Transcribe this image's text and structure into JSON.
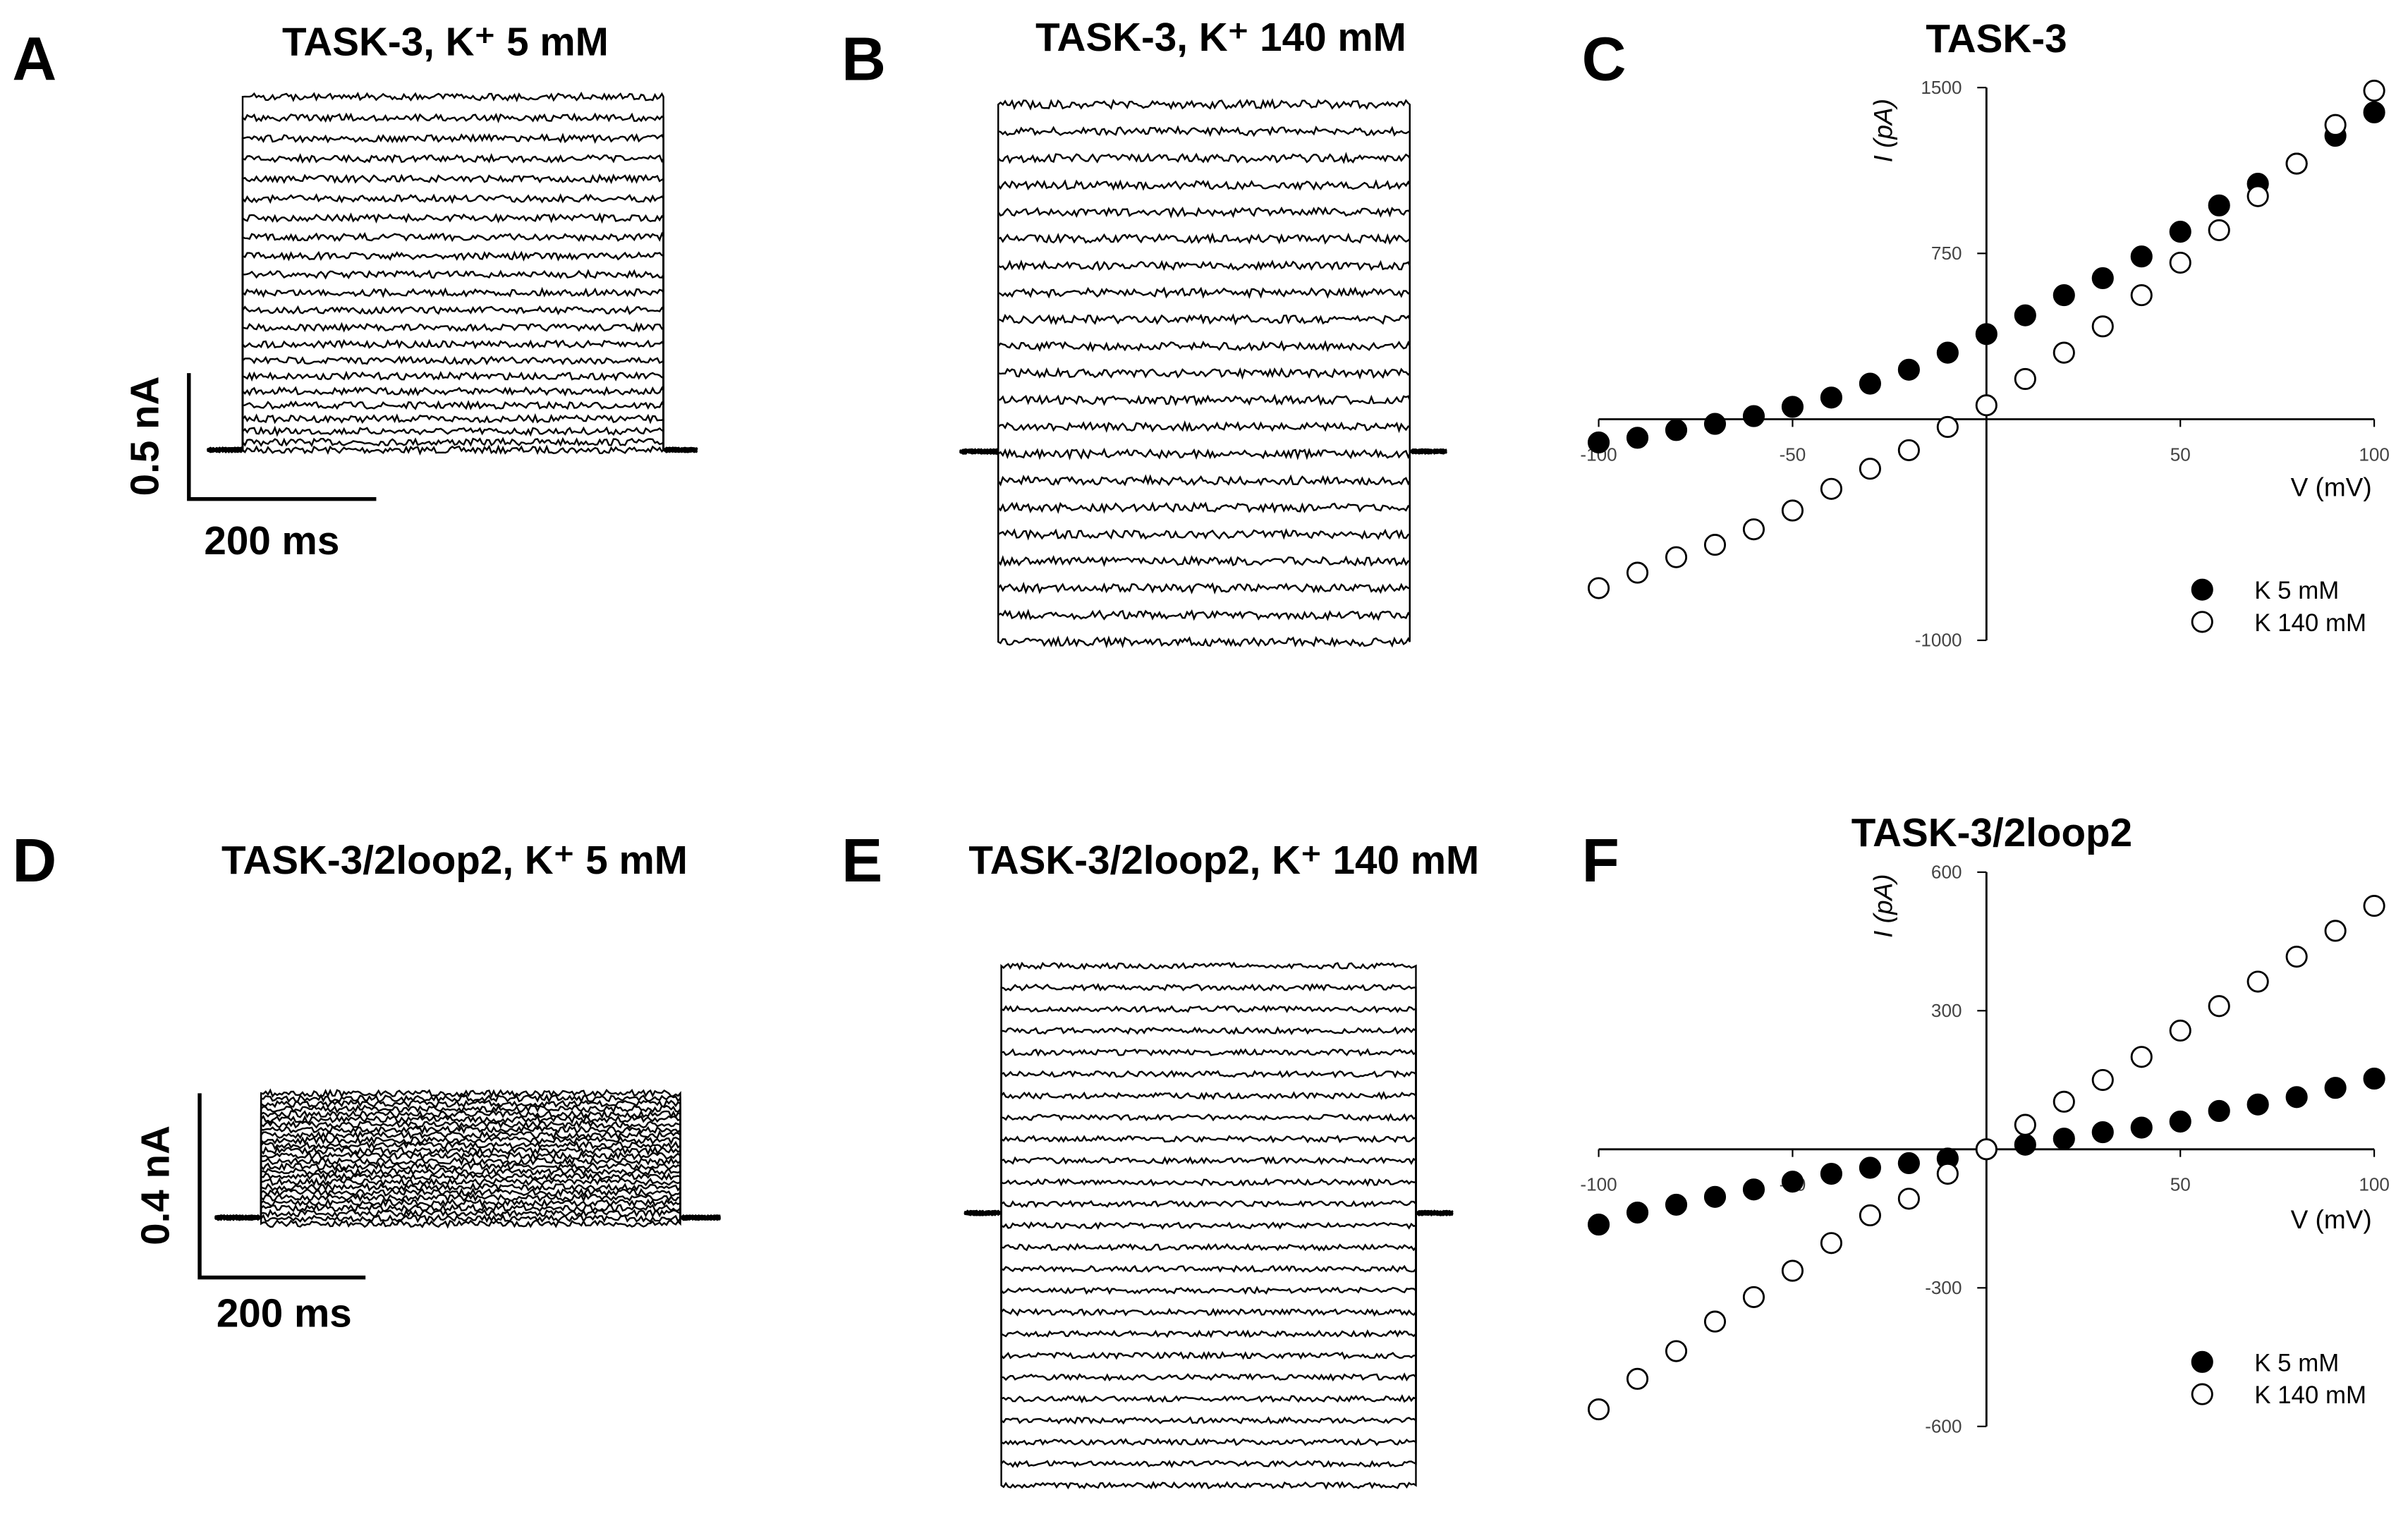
{
  "chart_data": [
    {
      "type": "traces",
      "panel": "A",
      "title": "TASK-3, K⁺ 5 mM",
      "scale_y": "0.5 nA",
      "scale_x": "200 ms"
    },
    {
      "type": "traces",
      "panel": "B",
      "title": "TASK-3, K⁺ 140 mM"
    },
    {
      "type": "scatter",
      "panel": "C",
      "title": "TASK-3",
      "x_label": "V (mV)",
      "y_label": "I (pA)",
      "x": [
        -100,
        -90,
        -80,
        -70,
        -60,
        -50,
        -40,
        -30,
        -20,
        -10,
        0,
        10,
        20,
        30,
        40,
        50,
        60,
        70,
        80,
        90,
        100
      ],
      "xlim": [
        -100,
        100
      ],
      "xticks": [
        -100,
        -50,
        50,
        100
      ],
      "ylim": [
        -1000,
        1500
      ],
      "yticks": [
        -1000,
        750,
        1500
      ],
      "legend": "lower right",
      "series": [
        {
          "name": "K 5 mM",
          "color": "#000000",
          "marker": "filled",
          "values": [
            -105,
            -84,
            -49,
            -21,
            14,
            56,
            98,
            161,
            224,
            301,
            385,
            470,
            561,
            638,
            736,
            848,
            967,
            1065,
            1156,
            1282,
            1388
          ]
        },
        {
          "name": "K 140 mM",
          "color": "#000000",
          "marker": "open",
          "values": [
            -764,
            -694,
            -624,
            -568,
            -498,
            -413,
            -315,
            -224,
            -140,
            -35,
            63,
            182,
            301,
            420,
            561,
            708,
            855,
            1009,
            1156,
            1331,
            1486
          ]
        }
      ]
    },
    {
      "type": "traces",
      "panel": "D",
      "title": "TASK-3/2loop2, K⁺ 5 mM",
      "scale_y": "0.4 nA",
      "scale_x": "200 ms"
    },
    {
      "type": "traces",
      "panel": "E",
      "title": "TASK-3/2loop2, K⁺ 140 mM"
    },
    {
      "type": "scatter",
      "panel": "F",
      "title": "TASK-3/2loop2",
      "x_label": "V (mV)",
      "y_label": "I (pA)",
      "x": [
        -100,
        -90,
        -80,
        -70,
        -60,
        -50,
        -40,
        -30,
        -20,
        -10,
        0,
        10,
        20,
        30,
        40,
        50,
        60,
        70,
        80,
        90,
        100
      ],
      "xlim": [
        -100,
        100
      ],
      "xticks": [
        -100,
        -50,
        50,
        100
      ],
      "ylim": [
        -600,
        600
      ],
      "yticks": [
        -600,
        -300,
        300,
        600
      ],
      "legend": "lower right",
      "series": [
        {
          "name": "K 5 mM",
          "color": "#000000",
          "marker": "filled",
          "values": [
            -163,
            -137,
            -120,
            -103,
            -87,
            -70,
            -53,
            -40,
            -30,
            -20,
            0,
            10,
            23,
            37,
            47,
            60,
            83,
            97,
            113,
            133,
            153
          ]
        },
        {
          "name": "K 140 mM",
          "color": "#000000",
          "marker": "open",
          "values": [
            -563,
            -497,
            -437,
            -373,
            -320,
            -263,
            -203,
            -143,
            -107,
            -53,
            0,
            53,
            103,
            150,
            200,
            257,
            310,
            363,
            417,
            473,
            527
          ]
        }
      ]
    }
  ]
}
